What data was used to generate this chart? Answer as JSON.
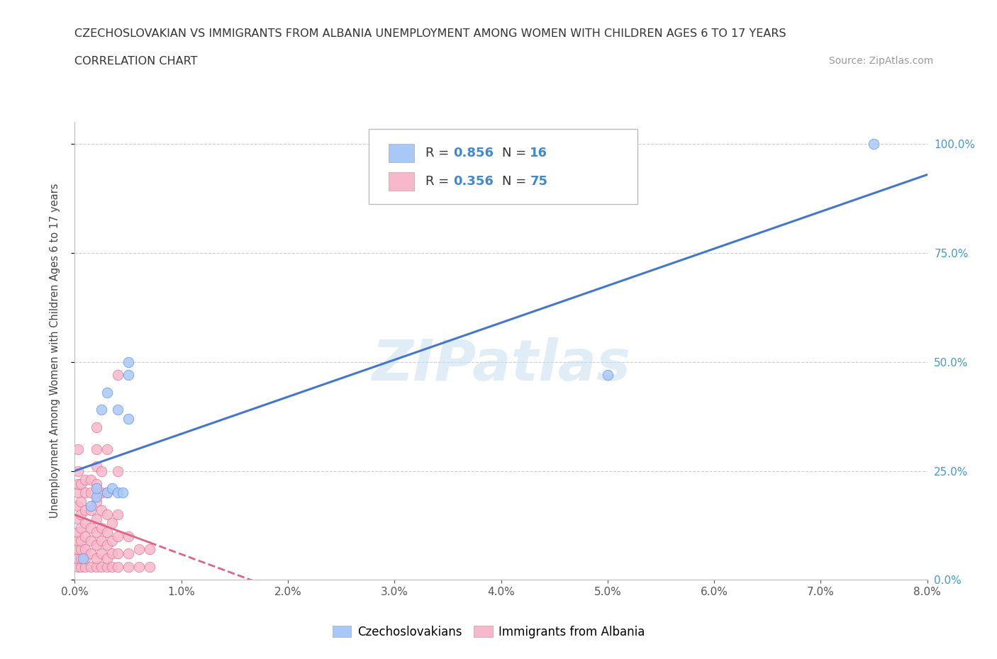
{
  "title_line1": "CZECHOSLOVAKIAN VS IMMIGRANTS FROM ALBANIA UNEMPLOYMENT AMONG WOMEN WITH CHILDREN AGES 6 TO 17 YEARS",
  "title_line2": "CORRELATION CHART",
  "source_text": "Source: ZipAtlas.com",
  "ylabel": "Unemployment Among Women with Children Ages 6 to 17 years",
  "x_min": 0.0,
  "x_max": 0.08,
  "y_min": 0.0,
  "y_max": 1.05,
  "x_tick_values": [
    0.0,
    0.01,
    0.02,
    0.03,
    0.04,
    0.05,
    0.06,
    0.07,
    0.08
  ],
  "x_tick_labels": [
    "0.0%",
    "1.0%",
    "2.0%",
    "3.0%",
    "4.0%",
    "5.0%",
    "6.0%",
    "7.0%",
    "8.0%"
  ],
  "y_tick_values": [
    0.0,
    0.25,
    0.5,
    0.75,
    1.0
  ],
  "y_tick_labels": [
    "0.0%",
    "25.0%",
    "50.0%",
    "75.0%",
    "100.0%"
  ],
  "blue_color": "#a8c8f8",
  "blue_edge_color": "#5588dd",
  "pink_color": "#f8b8cc",
  "pink_edge_color": "#dd6688",
  "blue_line_color": "#4477cc",
  "pink_line_color": "#dd6688",
  "blue_R": 0.856,
  "blue_N": 16,
  "pink_R": 0.356,
  "pink_N": 75,
  "legend_label_blue": "Czechoslovakians",
  "legend_label_pink": "Immigrants from Albania",
  "watermark": "ZIPatlas",
  "num_color": "#4488cc",
  "label_color": "#333333",
  "blue_scatter": [
    [
      0.0008,
      0.05
    ],
    [
      0.0015,
      0.17
    ],
    [
      0.002,
      0.19
    ],
    [
      0.002,
      0.21
    ],
    [
      0.0025,
      0.39
    ],
    [
      0.003,
      0.2
    ],
    [
      0.003,
      0.43
    ],
    [
      0.0035,
      0.21
    ],
    [
      0.004,
      0.2
    ],
    [
      0.004,
      0.39
    ],
    [
      0.0045,
      0.2
    ],
    [
      0.005,
      0.37
    ],
    [
      0.005,
      0.47
    ],
    [
      0.005,
      0.5
    ],
    [
      0.05,
      0.47
    ],
    [
      0.075,
      1.0
    ]
  ],
  "pink_scatter": [
    [
      0.0003,
      0.03
    ],
    [
      0.0003,
      0.05
    ],
    [
      0.0003,
      0.07
    ],
    [
      0.0003,
      0.09
    ],
    [
      0.0003,
      0.11
    ],
    [
      0.0003,
      0.14
    ],
    [
      0.0003,
      0.17
    ],
    [
      0.0003,
      0.2
    ],
    [
      0.0003,
      0.22
    ],
    [
      0.0003,
      0.25
    ],
    [
      0.0003,
      0.3
    ],
    [
      0.0006,
      0.03
    ],
    [
      0.0006,
      0.05
    ],
    [
      0.0006,
      0.07
    ],
    [
      0.0006,
      0.09
    ],
    [
      0.0006,
      0.12
    ],
    [
      0.0006,
      0.15
    ],
    [
      0.0006,
      0.18
    ],
    [
      0.0006,
      0.22
    ],
    [
      0.001,
      0.03
    ],
    [
      0.001,
      0.05
    ],
    [
      0.001,
      0.07
    ],
    [
      0.001,
      0.1
    ],
    [
      0.001,
      0.13
    ],
    [
      0.001,
      0.16
    ],
    [
      0.001,
      0.2
    ],
    [
      0.001,
      0.23
    ],
    [
      0.0015,
      0.03
    ],
    [
      0.0015,
      0.06
    ],
    [
      0.0015,
      0.09
    ],
    [
      0.0015,
      0.12
    ],
    [
      0.0015,
      0.16
    ],
    [
      0.0015,
      0.2
    ],
    [
      0.0015,
      0.23
    ],
    [
      0.002,
      0.03
    ],
    [
      0.002,
      0.05
    ],
    [
      0.002,
      0.08
    ],
    [
      0.002,
      0.11
    ],
    [
      0.002,
      0.14
    ],
    [
      0.002,
      0.18
    ],
    [
      0.002,
      0.22
    ],
    [
      0.002,
      0.26
    ],
    [
      0.002,
      0.3
    ],
    [
      0.002,
      0.35
    ],
    [
      0.0025,
      0.03
    ],
    [
      0.0025,
      0.06
    ],
    [
      0.0025,
      0.09
    ],
    [
      0.0025,
      0.12
    ],
    [
      0.0025,
      0.16
    ],
    [
      0.0025,
      0.2
    ],
    [
      0.0025,
      0.25
    ],
    [
      0.003,
      0.03
    ],
    [
      0.003,
      0.05
    ],
    [
      0.003,
      0.08
    ],
    [
      0.003,
      0.11
    ],
    [
      0.003,
      0.15
    ],
    [
      0.003,
      0.2
    ],
    [
      0.003,
      0.3
    ],
    [
      0.0035,
      0.03
    ],
    [
      0.0035,
      0.06
    ],
    [
      0.0035,
      0.09
    ],
    [
      0.0035,
      0.13
    ],
    [
      0.004,
      0.03
    ],
    [
      0.004,
      0.06
    ],
    [
      0.004,
      0.1
    ],
    [
      0.004,
      0.15
    ],
    [
      0.004,
      0.25
    ],
    [
      0.004,
      0.47
    ],
    [
      0.005,
      0.03
    ],
    [
      0.005,
      0.06
    ],
    [
      0.005,
      0.1
    ],
    [
      0.006,
      0.03
    ],
    [
      0.006,
      0.07
    ],
    [
      0.007,
      0.03
    ],
    [
      0.007,
      0.07
    ]
  ]
}
